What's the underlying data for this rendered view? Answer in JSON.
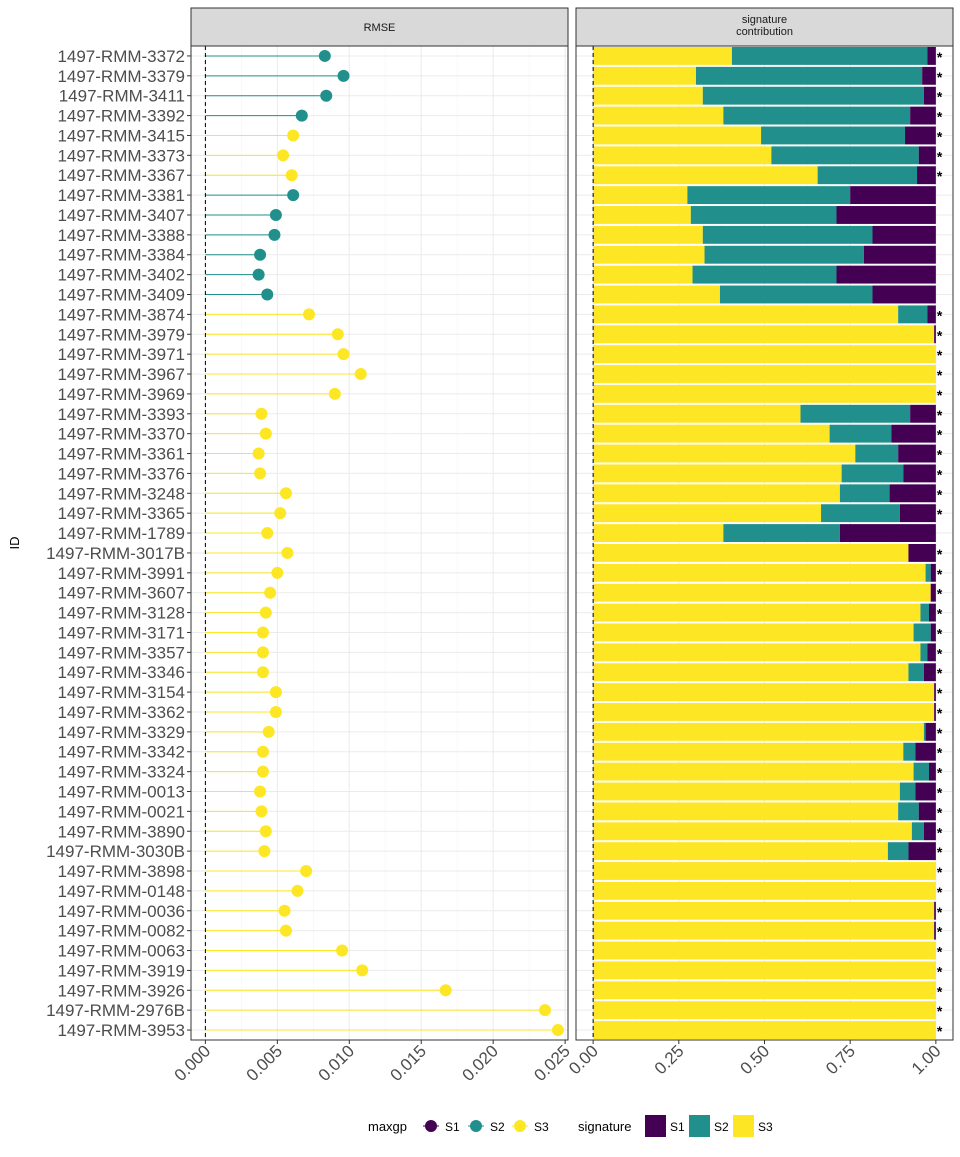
{
  "chart_data": {
    "type": "faceted lollipop + stacked bar",
    "ylabel": "ID",
    "ids": [
      "1497-RMM-3372",
      "1497-RMM-3379",
      "1497-RMM-3411",
      "1497-RMM-3392",
      "1497-RMM-3415",
      "1497-RMM-3373",
      "1497-RMM-3367",
      "1497-RMM-3381",
      "1497-RMM-3407",
      "1497-RMM-3388",
      "1497-RMM-3384",
      "1497-RMM-3402",
      "1497-RMM-3409",
      "1497-RMM-3874",
      "1497-RMM-3979",
      "1497-RMM-3971",
      "1497-RMM-3967",
      "1497-RMM-3969",
      "1497-RMM-3393",
      "1497-RMM-3370",
      "1497-RMM-3361",
      "1497-RMM-3376",
      "1497-RMM-3248",
      "1497-RMM-3365",
      "1497-RMM-1789",
      "1497-RMM-3017B",
      "1497-RMM-3991",
      "1497-RMM-3607",
      "1497-RMM-3128",
      "1497-RMM-3171",
      "1497-RMM-3357",
      "1497-RMM-3346",
      "1497-RMM-3154",
      "1497-RMM-3362",
      "1497-RMM-3329",
      "1497-RMM-3342",
      "1497-RMM-3324",
      "1497-RMM-0013",
      "1497-RMM-0021",
      "1497-RMM-3890",
      "1497-RMM-3030B",
      "1497-RMM-3898",
      "1497-RMM-0148",
      "1497-RMM-0036",
      "1497-RMM-0082",
      "1497-RMM-0063",
      "1497-RMM-3919",
      "1497-RMM-3926",
      "1497-RMM-2976B",
      "1497-RMM-3953"
    ],
    "colors": {
      "S1": "#440154",
      "S2": "#21908C",
      "S3": "#FDE725"
    },
    "panels": [
      {
        "strip_label": "RMSE",
        "type": "lollipop",
        "xlim": [
          -0.001,
          0.0252
        ],
        "xticks": [
          "0.000",
          "0.005",
          "0.010",
          "0.015",
          "0.020",
          "0.025"
        ],
        "xtick_values": [
          0,
          0.005,
          0.01,
          0.015,
          0.02,
          0.025
        ],
        "rmse": [
          0.0083,
          0.0096,
          0.0084,
          0.0067,
          0.0061,
          0.0054,
          0.006,
          0.0061,
          0.0049,
          0.0048,
          0.0038,
          0.0037,
          0.0043,
          0.0072,
          0.0092,
          0.0096,
          0.0108,
          0.009,
          0.0039,
          0.0042,
          0.0037,
          0.0038,
          0.0056,
          0.0052,
          0.0043,
          0.0057,
          0.005,
          0.0045,
          0.0042,
          0.004,
          0.004,
          0.004,
          0.0049,
          0.0049,
          0.0044,
          0.004,
          0.004,
          0.0038,
          0.0039,
          0.0042,
          0.0041,
          0.007,
          0.0064,
          0.0055,
          0.0056,
          0.0095,
          0.0109,
          0.0167,
          0.0236,
          0.0245
        ],
        "maxgp": [
          "S2",
          "S2",
          "S2",
          "S2",
          "S3",
          "S3",
          "S3",
          "S2",
          "S2",
          "S2",
          "S2",
          "S2",
          "S2",
          "S3",
          "S3",
          "S3",
          "S3",
          "S3",
          "S3",
          "S3",
          "S3",
          "S3",
          "S3",
          "S3",
          "S3",
          "S3",
          "S3",
          "S3",
          "S3",
          "S3",
          "S3",
          "S3",
          "S3",
          "S3",
          "S3",
          "S3",
          "S3",
          "S3",
          "S3",
          "S3",
          "S3",
          "S3",
          "S3",
          "S3",
          "S3",
          "S3",
          "S3",
          "S3",
          "S3",
          "S3"
        ]
      },
      {
        "strip_label_lines": [
          "signature",
          "contribution"
        ],
        "type": "stacked-bar",
        "xlim": [
          -0.05,
          1.05
        ],
        "xticks": [
          "0.00",
          "0.25",
          "0.50",
          "0.75",
          "1.00"
        ],
        "xtick_values": [
          0,
          0.25,
          0.5,
          0.75,
          1.0
        ],
        "S3": [
          0.405,
          0.3,
          0.32,
          0.38,
          0.49,
          0.52,
          0.655,
          0.275,
          0.285,
          0.32,
          0.325,
          0.29,
          0.37,
          0.89,
          0.995,
          1.0,
          1.0,
          1.0,
          0.605,
          0.69,
          0.765,
          0.725,
          0.72,
          0.665,
          0.38,
          0.92,
          0.97,
          0.985,
          0.955,
          0.935,
          0.955,
          0.92,
          0.995,
          0.995,
          0.965,
          0.905,
          0.935,
          0.895,
          0.89,
          0.93,
          0.86,
          1.0,
          1.0,
          0.995,
          0.995,
          1.0,
          1.0,
          1.0,
          1.0,
          1.0
        ],
        "S2": [
          0.57,
          0.66,
          0.645,
          0.545,
          0.42,
          0.43,
          0.29,
          0.475,
          0.425,
          0.495,
          0.465,
          0.42,
          0.445,
          0.085,
          0.0,
          0.0,
          0.0,
          0.0,
          0.32,
          0.18,
          0.125,
          0.18,
          0.145,
          0.23,
          0.34,
          0.0,
          0.015,
          0.0,
          0.025,
          0.05,
          0.02,
          0.045,
          0.0,
          0.0,
          0.005,
          0.035,
          0.045,
          0.045,
          0.06,
          0.035,
          0.06,
          0.0,
          0.0,
          0.0,
          0.0,
          0.0,
          0.0,
          0.0,
          0.0,
          0.0
        ],
        "S1": [
          0.025,
          0.04,
          0.035,
          0.075,
          0.09,
          0.05,
          0.055,
          0.25,
          0.29,
          0.185,
          0.21,
          0.29,
          0.185,
          0.025,
          0.005,
          0.0,
          0.0,
          0.0,
          0.075,
          0.13,
          0.11,
          0.095,
          0.135,
          0.105,
          0.28,
          0.08,
          0.015,
          0.015,
          0.02,
          0.015,
          0.025,
          0.035,
          0.005,
          0.005,
          0.03,
          0.06,
          0.02,
          0.06,
          0.05,
          0.035,
          0.08,
          0.0,
          0.0,
          0.005,
          0.005,
          0.0,
          0.0,
          0.0,
          0.0,
          0.0
        ],
        "star": [
          true,
          true,
          true,
          true,
          true,
          true,
          true,
          false,
          false,
          false,
          false,
          false,
          false,
          true,
          true,
          true,
          true,
          true,
          true,
          true,
          true,
          true,
          true,
          true,
          false,
          true,
          true,
          true,
          true,
          true,
          true,
          true,
          true,
          true,
          true,
          true,
          true,
          true,
          true,
          true,
          true,
          true,
          true,
          true,
          true,
          true,
          true,
          true,
          true,
          true
        ],
        "star_symbol": "*"
      }
    ],
    "legends": [
      {
        "title": "maxgp",
        "entries": [
          "S1",
          "S2",
          "S3"
        ]
      },
      {
        "title": "signature",
        "entries": [
          "S1",
          "S2",
          "S3"
        ]
      }
    ]
  }
}
